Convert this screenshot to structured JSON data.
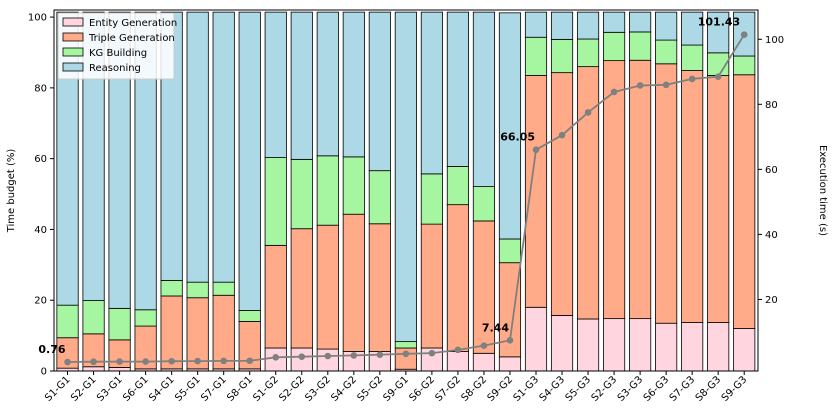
{
  "chart_data": {
    "type": "bar",
    "stacked": true,
    "categories": [
      "S1-G1",
      "S2-G1",
      "S3-G1",
      "S6-G1",
      "S4-G1",
      "S5-G1",
      "S7-G1",
      "S8-G1",
      "S1-G2",
      "S2-G2",
      "S3-G2",
      "S4-G2",
      "S5-G2",
      "S9-G1",
      "S6-G2",
      "S7-G2",
      "S8-G2",
      "S9-G2",
      "S1-G3",
      "S4-G3",
      "S5-G3",
      "S2-G3",
      "S3-G3",
      "S6-G3",
      "S7-G3",
      "S8-G3",
      "S9-G3"
    ],
    "series": [
      {
        "name": "Entity Generation",
        "color": "#ffd6e0",
        "values": [
          0.8,
          1.2,
          1.0,
          0.6,
          0.6,
          0.6,
          0.6,
          0.6,
          6.5,
          6.5,
          6.2,
          5.5,
          5.5,
          0.5,
          6.5,
          5.5,
          5.0,
          4.0,
          18.0,
          15.7,
          14.7,
          14.8,
          14.8,
          13.5,
          13.7,
          13.7,
          12.0
        ]
      },
      {
        "name": "Triple Generation",
        "color": "#ffaa88",
        "values": [
          8.6,
          9.3,
          7.8,
          12.1,
          20.6,
          20.1,
          20.8,
          13.4,
          29.0,
          33.7,
          35.0,
          38.8,
          36.1,
          6.0,
          35.0,
          41.5,
          37.4,
          26.6,
          65.5,
          68.6,
          71.3,
          72.9,
          73.0,
          73.3,
          71.2,
          69.8,
          71.7
        ]
      },
      {
        "name": "KG Building",
        "color": "#a6f5a1",
        "values": [
          9.2,
          9.4,
          8.9,
          4.6,
          4.4,
          4.4,
          3.7,
          3.1,
          24.8,
          19.6,
          19.6,
          16.2,
          15.0,
          1.8,
          14.2,
          10.8,
          9.7,
          6.7,
          10.8,
          9.4,
          7.8,
          8.0,
          8.0,
          6.7,
          7.2,
          6.4,
          5.3
        ]
      },
      {
        "name": "Reasoning",
        "color": "#add8e6",
        "values": [
          82.8,
          81.5,
          83.7,
          84.1,
          75.8,
          76.3,
          76.3,
          84.3,
          41.1,
          41.6,
          40.6,
          40.9,
          44.8,
          93.1,
          45.7,
          43.6,
          49.3,
          63.9,
          7.1,
          7.7,
          7.6,
          5.7,
          5.6,
          7.9,
          9.3,
          11.5,
          12.4
        ]
      }
    ],
    "execution_time": {
      "name": "Execution time (s)",
      "color": "#808080",
      "values": [
        0.76,
        0.85,
        0.9,
        0.9,
        1.0,
        1.05,
        1.1,
        1.15,
        2.2,
        2.4,
        2.6,
        2.8,
        3.0,
        3.3,
        3.5,
        4.5,
        5.8,
        7.44,
        66.05,
        70.5,
        77.5,
        83.8,
        85.8,
        86.0,
        87.8,
        88.5,
        101.43
      ]
    },
    "annotations": [
      "0.76",
      "7.44",
      "66.05",
      "101.43"
    ],
    "ylabel": "Time budget (%)",
    "y2label": "Execution time (s)",
    "ylim": [
      0,
      102
    ],
    "y2lim": [
      -2,
      109
    ],
    "yticks": [
      "0",
      "20",
      "40",
      "60",
      "80",
      "100"
    ],
    "y2ticks": [
      "20",
      "40",
      "60",
      "80",
      "100"
    ],
    "legend_position": "top-left"
  }
}
